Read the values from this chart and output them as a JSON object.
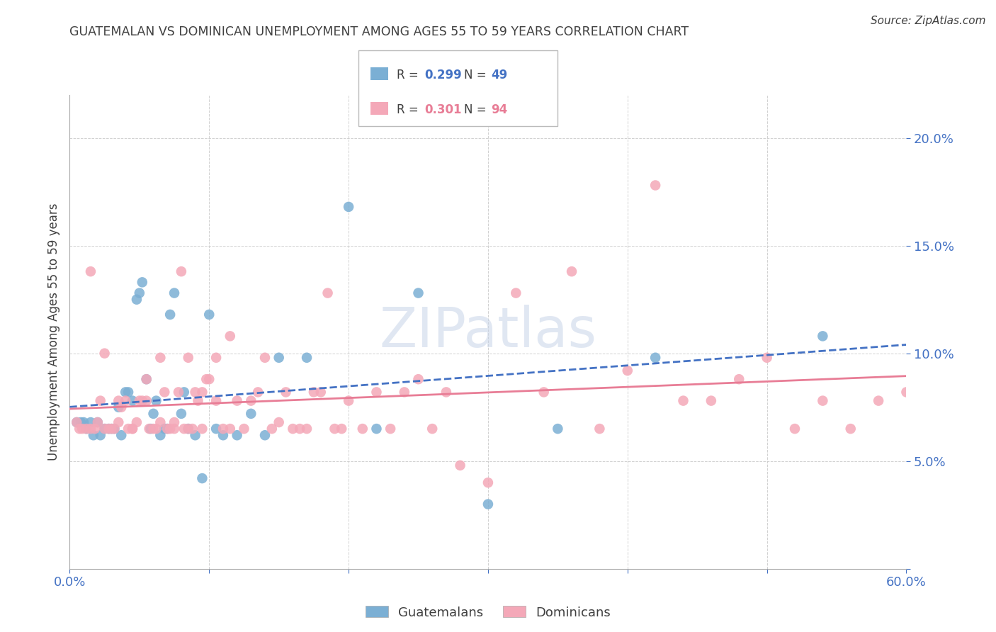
{
  "title": "GUATEMALAN VS DOMINICAN UNEMPLOYMENT AMONG AGES 55 TO 59 YEARS CORRELATION CHART",
  "source": "Source: ZipAtlas.com",
  "ylabel": "Unemployment Among Ages 55 to 59 years",
  "xlim": [
    0.0,
    0.6
  ],
  "ylim": [
    0.0,
    0.22
  ],
  "r_guatemalan": 0.299,
  "n_guatemalan": 49,
  "r_dominican": 0.301,
  "n_dominican": 94,
  "color_guatemalan": "#7bafd4",
  "color_dominican": "#f4a8b8",
  "color_blue": "#4472c4",
  "color_pink": "#e87d96",
  "color_text": "#404040",
  "guatemalan_x": [
    0.005,
    0.008,
    0.01,
    0.012,
    0.015,
    0.017,
    0.02,
    0.022,
    0.025,
    0.028,
    0.03,
    0.032,
    0.035,
    0.037,
    0.04,
    0.042,
    0.045,
    0.048,
    0.05,
    0.052,
    0.055,
    0.058,
    0.06,
    0.062,
    0.065,
    0.068,
    0.07,
    0.072,
    0.075,
    0.08,
    0.082,
    0.085,
    0.09,
    0.095,
    0.1,
    0.105,
    0.11,
    0.12,
    0.13,
    0.14,
    0.15,
    0.17,
    0.2,
    0.22,
    0.25,
    0.3,
    0.35,
    0.42,
    0.54
  ],
  "guatemalan_y": [
    0.068,
    0.068,
    0.068,
    0.065,
    0.068,
    0.062,
    0.068,
    0.062,
    0.065,
    0.065,
    0.065,
    0.065,
    0.075,
    0.062,
    0.082,
    0.082,
    0.078,
    0.125,
    0.128,
    0.133,
    0.088,
    0.065,
    0.072,
    0.078,
    0.062,
    0.065,
    0.065,
    0.118,
    0.128,
    0.072,
    0.082,
    0.065,
    0.062,
    0.042,
    0.118,
    0.065,
    0.062,
    0.062,
    0.072,
    0.062,
    0.098,
    0.098,
    0.168,
    0.065,
    0.128,
    0.03,
    0.065,
    0.098,
    0.108
  ],
  "dominican_x": [
    0.005,
    0.007,
    0.009,
    0.012,
    0.015,
    0.018,
    0.02,
    0.022,
    0.025,
    0.028,
    0.03,
    0.032,
    0.035,
    0.037,
    0.04,
    0.042,
    0.045,
    0.048,
    0.05,
    0.052,
    0.055,
    0.057,
    0.06,
    0.062,
    0.065,
    0.068,
    0.07,
    0.072,
    0.075,
    0.078,
    0.08,
    0.082,
    0.085,
    0.088,
    0.09,
    0.092,
    0.095,
    0.098,
    0.1,
    0.105,
    0.11,
    0.115,
    0.12,
    0.125,
    0.13,
    0.135,
    0.14,
    0.145,
    0.15,
    0.155,
    0.16,
    0.165,
    0.17,
    0.175,
    0.18,
    0.185,
    0.19,
    0.195,
    0.2,
    0.21,
    0.22,
    0.23,
    0.24,
    0.25,
    0.26,
    0.27,
    0.28,
    0.3,
    0.32,
    0.34,
    0.36,
    0.38,
    0.4,
    0.42,
    0.44,
    0.46,
    0.48,
    0.5,
    0.52,
    0.54,
    0.56,
    0.58,
    0.6,
    0.015,
    0.025,
    0.035,
    0.045,
    0.055,
    0.065,
    0.075,
    0.085,
    0.095,
    0.105,
    0.115
  ],
  "dominican_y": [
    0.068,
    0.065,
    0.065,
    0.065,
    0.065,
    0.065,
    0.068,
    0.078,
    0.1,
    0.065,
    0.065,
    0.065,
    0.068,
    0.075,
    0.078,
    0.065,
    0.065,
    0.068,
    0.078,
    0.078,
    0.088,
    0.065,
    0.065,
    0.065,
    0.068,
    0.082,
    0.065,
    0.065,
    0.068,
    0.082,
    0.138,
    0.065,
    0.065,
    0.065,
    0.082,
    0.078,
    0.082,
    0.088,
    0.088,
    0.098,
    0.065,
    0.065,
    0.078,
    0.065,
    0.078,
    0.082,
    0.098,
    0.065,
    0.068,
    0.082,
    0.065,
    0.065,
    0.065,
    0.082,
    0.082,
    0.128,
    0.065,
    0.065,
    0.078,
    0.065,
    0.082,
    0.065,
    0.082,
    0.088,
    0.065,
    0.082,
    0.048,
    0.04,
    0.128,
    0.082,
    0.138,
    0.065,
    0.092,
    0.178,
    0.078,
    0.078,
    0.088,
    0.098,
    0.065,
    0.078,
    0.065,
    0.078,
    0.082,
    0.138,
    0.065,
    0.078,
    0.065,
    0.078,
    0.098,
    0.065,
    0.098,
    0.065,
    0.078,
    0.108
  ]
}
